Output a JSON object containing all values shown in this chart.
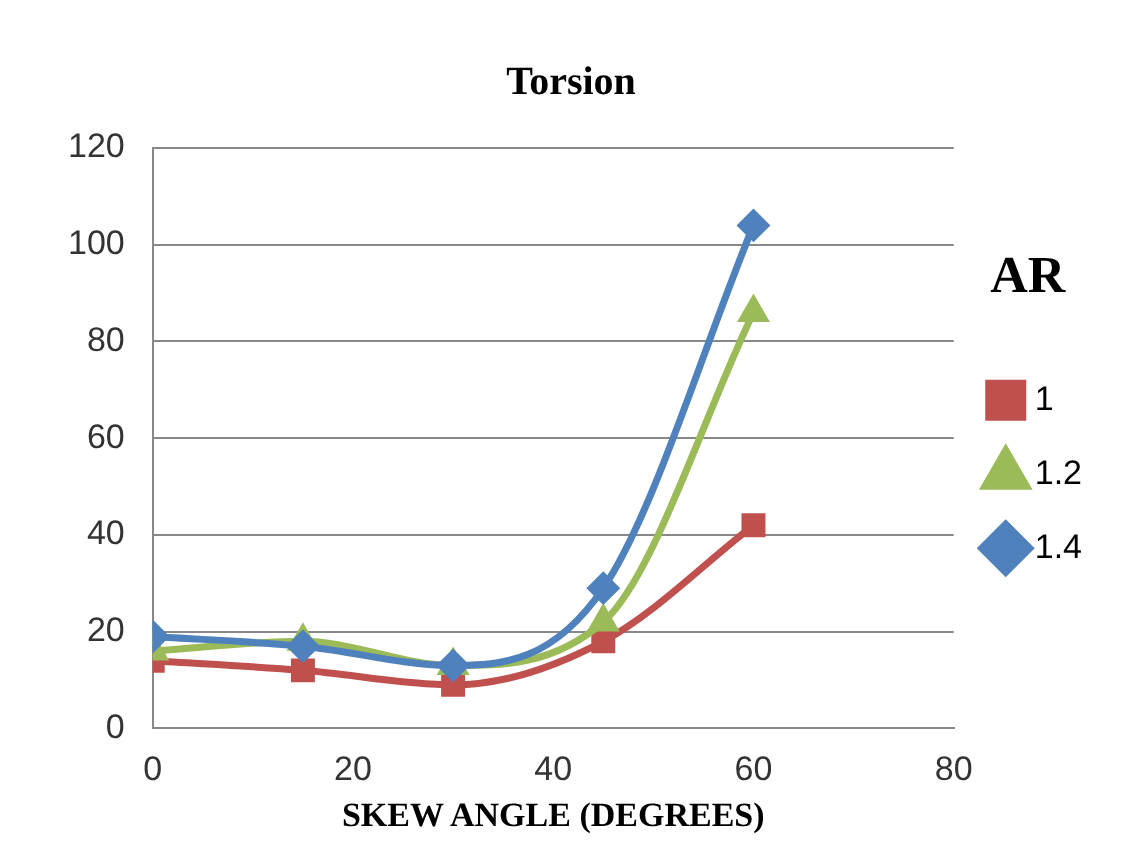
{
  "chart_data": {
    "type": "line",
    "title": "Torsion",
    "xlabel": "SKEW ANGLE (DEGREES)",
    "legend_title": "AR",
    "x": [
      0,
      15,
      30,
      45,
      60
    ],
    "series": [
      {
        "name": "1",
        "color": "#c0504d",
        "marker": "square",
        "values": [
          14,
          12,
          9,
          18,
          42
        ]
      },
      {
        "name": "1.2",
        "color": "#9bbb59",
        "marker": "triangle",
        "values": [
          16,
          18,
          13,
          22,
          86
        ]
      },
      {
        "name": "1.4",
        "color": "#4f81bd",
        "marker": "diamond",
        "values": [
          19,
          17,
          13,
          29,
          104
        ]
      }
    ],
    "xlim": [
      0,
      80
    ],
    "xticks": [
      0,
      20,
      40,
      60,
      80
    ],
    "ylim": [
      0,
      120
    ],
    "yticks": [
      0,
      20,
      40,
      60,
      80,
      100,
      120
    ],
    "grid": "y",
    "legend": "right"
  }
}
